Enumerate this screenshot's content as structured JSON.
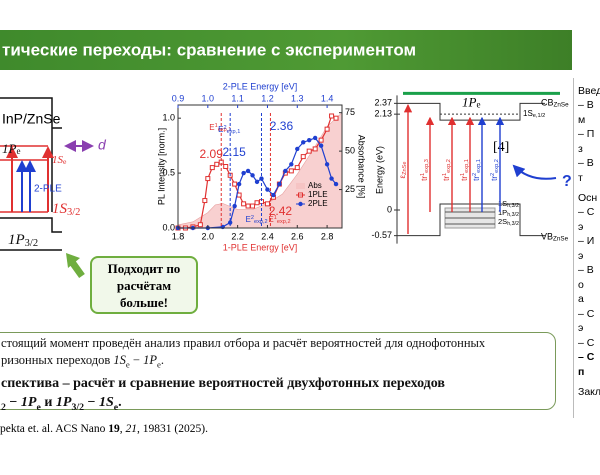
{
  "header": {
    "title": "тические переходы: сравнение с экспериментом"
  },
  "left_diagram": {
    "material": "InP/ZnSe",
    "d": "d",
    "pump": "2-PLE",
    "levels": [
      [
        {
          "math": "1P"
        },
        {
          "sub": "e"
        }
      ],
      [
        {
          "math": "1S"
        },
        {
          "sub": "e"
        }
      ],
      [
        {
          "math": "1S"
        },
        {
          "sub": "3/2"
        }
      ],
      [
        {
          "math": "1P"
        },
        {
          "sub": "3/2"
        }
      ]
    ]
  },
  "plot": {
    "x_label": "1-PLE Energy [eV]",
    "top_label": "2-PLE Energy [eV]",
    "y_label": "PL Intensity [norm.]",
    "y2_label": "Absorbance [%]",
    "xlim": [
      1.8,
      2.9
    ],
    "xticks": [
      1.8,
      {
        "value": 2.0,
        "label": "2.0"
      },
      2.2,
      2.4,
      2.6,
      2.8
    ],
    "top_lim": [
      0.9,
      1.45
    ],
    "top_ticks": [
      0.9,
      {
        "value": 1.0,
        "label": "1.0"
      },
      1.1,
      1.2,
      1.3,
      1.4
    ],
    "ylim": [
      0,
      1.12
    ],
    "yticks": [
      {
        "value": 0,
        "label": "0.0"
      },
      0.5,
      {
        "value": 1.0,
        "label": "1.0"
      }
    ],
    "y2lim": [
      0,
      80
    ],
    "y2ticks": [
      25,
      50,
      75
    ],
    "series": [
      {
        "name": "Abs",
        "color": "#f6c4c4",
        "axis": "y2",
        "x": [
          1.8,
          1.9,
          2.0,
          2.05,
          2.1,
          2.15,
          2.2,
          2.3,
          2.4,
          2.5,
          2.6,
          2.7,
          2.8,
          2.9
        ],
        "values": [
          2,
          4,
          10,
          15,
          16,
          14,
          12,
          12,
          16,
          22,
          35,
          50,
          66,
          75
        ]
      },
      {
        "name": "1PLE",
        "color": "#e03030",
        "x": [
          1.8,
          1.85,
          1.9,
          1.95,
          1.98,
          2.0,
          2.03,
          2.06,
          2.09,
          2.12,
          2.15,
          2.18,
          2.21,
          2.24,
          2.27,
          2.3,
          2.33,
          2.36,
          2.4,
          2.44,
          2.48,
          2.52,
          2.56,
          2.6,
          2.64,
          2.68,
          2.72,
          2.76,
          2.8,
          2.83,
          2.86
        ],
        "values": [
          0,
          0,
          0.01,
          0.03,
          0.25,
          0.45,
          0.55,
          0.58,
          0.6,
          0.56,
          0.48,
          0.4,
          0.3,
          0.22,
          0.2,
          0.2,
          0.23,
          0.24,
          0.22,
          0.28,
          0.4,
          0.5,
          0.52,
          0.55,
          0.65,
          0.7,
          0.72,
          0.8,
          0.9,
          1.02,
          1.0
        ]
      },
      {
        "name": "2PLE",
        "color": "#1f3fd0",
        "x": [
          1.8,
          1.9,
          2.0,
          2.1,
          2.15,
          2.18,
          2.21,
          2.24,
          2.27,
          2.3,
          2.33,
          2.36,
          2.4,
          2.44,
          2.48,
          2.52,
          2.56,
          2.6,
          2.64,
          2.68,
          2.72,
          2.76,
          2.8,
          2.83,
          2.86
        ],
        "values": [
          0,
          0,
          0,
          0.01,
          0.05,
          0.2,
          0.4,
          0.5,
          0.52,
          0.48,
          0.42,
          0.45,
          0.35,
          0.3,
          0.4,
          0.52,
          0.58,
          0.72,
          0.78,
          0.8,
          0.82,
          0.75,
          0.58,
          0.45,
          0.4
        ]
      }
    ],
    "annotations": [
      {
        "value": 2.09,
        "color": "#e03030",
        "label": [
          {
            "text": "E"
          },
          {
            "sup": "1"
          },
          {
            "sub": "exp,1"
          }
        ]
      },
      {
        "value": 2.15,
        "color": "#1f3fd0",
        "label": [
          {
            "text": "E"
          },
          {
            "sup": "2"
          },
          {
            "sub": "exp,1"
          }
        ]
      },
      {
        "value": 2.36,
        "color": "#1f3fd0",
        "label": [
          {
            "text": "E"
          },
          {
            "sup": "2"
          },
          {
            "sub": "exp,2"
          }
        ]
      },
      {
        "value": 2.42,
        "color": "#e03030",
        "label": [
          {
            "text": "E"
          },
          {
            "sup": "1"
          },
          {
            "sub": "exp,2"
          }
        ]
      }
    ]
  },
  "callout": {
    "lines": [
      "Подходит по",
      "расчётам",
      "больше!"
    ]
  },
  "energy_diagram": {
    "y_label": "Energy (eV)",
    "levels": [
      2.37,
      2.13,
      0,
      {
        "value": -0.57,
        "label": "-0.57"
      }
    ],
    "qd_level": [
      {
        "math": "1P"
      },
      {
        "sub": "e"
      }
    ],
    "cb": [
      {
        "text": "CB"
      },
      {
        "sub": "ZnSe"
      }
    ],
    "vb": [
      {
        "text": "VB"
      },
      {
        "sub": "ZnSe"
      }
    ],
    "s_e": [
      {
        "text": "1S"
      },
      {
        "sub": "e,1/2"
      }
    ],
    "ref": "[4]",
    "question": "?",
    "hole_levels": [
      [
        {
          "text": "1S"
        },
        {
          "sub": "h,3/2"
        }
      ],
      [
        {
          "text": "1P"
        },
        {
          "sub": "h,3/2"
        }
      ],
      [
        {
          "text": "2S"
        },
        {
          "sub": "h,3/2"
        }
      ]
    ],
    "transitions": [
      {
        "color": "#e03030",
        "label": [
          {
            "text": "ε"
          },
          {
            "sub": "ZnSe"
          }
        ]
      },
      {
        "color": "#e03030",
        "label": [
          {
            "text": "tr"
          },
          {
            "sup": "1"
          },
          {
            "sub": "exp,3"
          }
        ]
      },
      {
        "color": "#e03030",
        "label": [
          {
            "text": "tr"
          },
          {
            "sup": "1"
          },
          {
            "sub": "exp,2"
          }
        ]
      },
      {
        "color": "#e03030",
        "label": [
          {
            "text": "tr"
          },
          {
            "sup": "1"
          },
          {
            "sub": "exp,1"
          }
        ]
      },
      {
        "color": "#1f3fd0",
        "label": [
          {
            "text": "tr"
          },
          {
            "sup": "2"
          },
          {
            "sub": "exp,1"
          }
        ]
      },
      {
        "color": "#1f3fd0",
        "label": [
          {
            "text": "tr"
          },
          {
            "sup": "2"
          },
          {
            "sub": "exp,2"
          }
        ]
      }
    ]
  },
  "text_box": {
    "lines": [
      {
        "bold": false,
        "segments": [
          {
            "text": "стоящий момент проведён анализ правил отбора и расчёт вероятностей для однофотонных"
          }
        ]
      },
      {
        "bold": false,
        "segments": [
          {
            "text": "ризонных переходов "
          },
          {
            "math": "1S"
          },
          {
            "sub": "e"
          },
          {
            "text": " − "
          },
          {
            "math": "1P"
          },
          {
            "sub": "e"
          },
          {
            "text": "."
          }
        ]
      },
      {
        "bold": true,
        "segments": [
          {
            "text": "спектива – расчёт и сравнение вероятностей двухфотонных переходов"
          }
        ]
      },
      {
        "bold": true,
        "segments": [
          {
            "sub": "2"
          },
          {
            "text": " − "
          },
          {
            "math": "1P"
          },
          {
            "sub": "e"
          },
          {
            "text": " и "
          },
          {
            "math": "1P"
          },
          {
            "sub": "3/2"
          },
          {
            "text": " − "
          },
          {
            "math": "1S"
          },
          {
            "sub": "e"
          },
          {
            "text": "."
          }
        ]
      }
    ]
  },
  "citation": [
    {
      "text": "pekta et. al. ACS Nano "
    },
    {
      "bold": "19"
    },
    {
      "text": ", "
    },
    {
      "italic": "21"
    },
    {
      "text": ", 19831 (2025)."
    }
  ],
  "right_column": [
    {
      "title": "Введ",
      "items": [
        {
          "text": "– В"
        },
        {
          "text": "м"
        },
        {
          "text": "– П"
        },
        {
          "text": "з"
        },
        {
          "text": "– В"
        },
        {
          "text": "т"
        }
      ]
    },
    {
      "title": "Осн",
      "items": [
        {
          "text": "– С"
        },
        {
          "text": "э"
        },
        {
          "text": "– И"
        },
        {
          "text": "э"
        },
        {
          "text": "– В"
        },
        {
          "text": "о"
        },
        {
          "text": "а"
        },
        {
          "text": "– С"
        },
        {
          "text": "э"
        },
        {
          "text": "– С"
        },
        {
          "text": "– С",
          "bold": true
        },
        {
          "text": "п",
          "bold": true
        }
      ]
    },
    {
      "title": "Закл",
      "items": []
    }
  ]
}
